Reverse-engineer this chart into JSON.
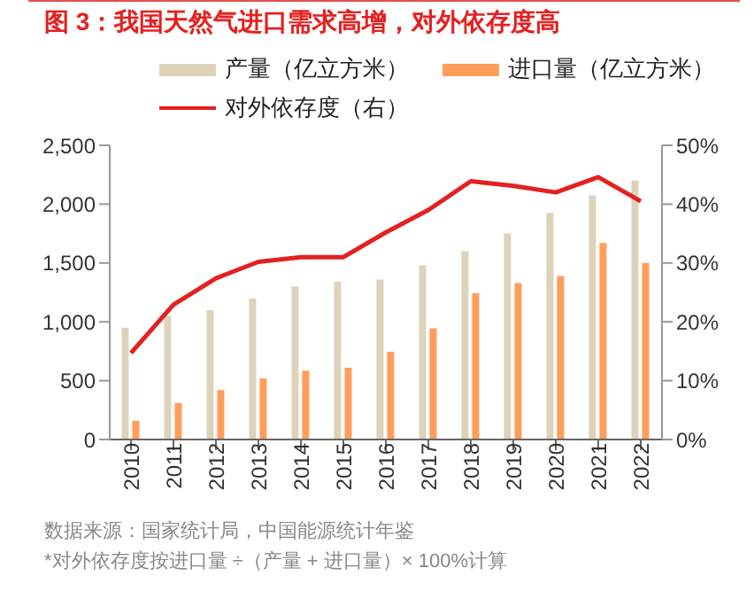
{
  "chart_data": {
    "type": "bar",
    "title": "图 3：我国天然气进口需求高增，对外依存度高",
    "categories": [
      "2010",
      "2011",
      "2012",
      "2013",
      "2014",
      "2015",
      "2016",
      "2017",
      "2018",
      "2019",
      "2020",
      "2021",
      "2022"
    ],
    "series": [
      {
        "name": "产量（亿立方米）",
        "color": "#ddd3bb",
        "values": [
          950,
          1050,
          1100,
          1200,
          1300,
          1340,
          1360,
          1480,
          1600,
          1750,
          1925,
          2075,
          2200
        ]
      },
      {
        "name": "进口量（亿立方米）",
        "color": "#ff9e5a",
        "values": [
          160,
          310,
          420,
          520,
          585,
          610,
          745,
          945,
          1245,
          1330,
          1390,
          1670,
          1500
        ]
      },
      {
        "name": "对外依存度（右）",
        "color": "#e32121",
        "type": "line",
        "axis": "y2",
        "values": [
          14.7,
          22.9,
          27.4,
          30.2,
          31.0,
          31.0,
          35.2,
          39.0,
          43.9,
          43.1,
          42.0,
          44.6,
          40.5
        ]
      }
    ],
    "ylim": [
      0,
      2500
    ],
    "yticks": [
      0,
      {
        "value": 500,
        "label": "500"
      },
      {
        "value": 1000,
        "label": "1,000"
      },
      {
        "value": 1500,
        "label": "1,500"
      },
      {
        "value": 2000,
        "label": "2,000"
      },
      {
        "value": 2500,
        "label": "2,500"
      }
    ],
    "y2lim": [
      0,
      50
    ],
    "y2ticks": [
      {
        "value": 0,
        "label": "0%"
      },
      {
        "value": 10,
        "label": "10%"
      },
      {
        "value": 20,
        "label": "20%"
      },
      {
        "value": 30,
        "label": "30%"
      },
      {
        "value": 40,
        "label": "40%"
      },
      {
        "value": 50,
        "label": "50%"
      }
    ],
    "legend": "top",
    "grid": false,
    "marker": "none",
    "annotations": [
      "数据来源：国家统计局，中国能源统计年鉴",
      "*对外依存度按进口量 ÷（产量 + 进口量）× 100%计算"
    ]
  }
}
